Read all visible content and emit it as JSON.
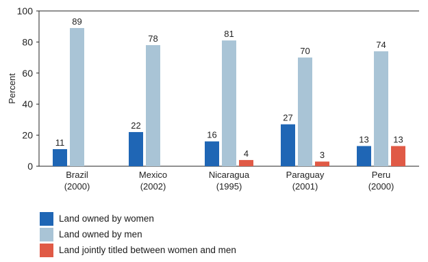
{
  "chart_data": {
    "type": "bar",
    "ylabel": "Percent",
    "ylim": [
      0,
      100
    ],
    "yticks": [
      0,
      20,
      40,
      60,
      80,
      100
    ],
    "categories": [
      [
        "Brazil",
        "(2000)"
      ],
      [
        "Mexico",
        "(2002)"
      ],
      [
        "Nicaragua",
        "(1995)"
      ],
      [
        "Paraguay",
        "(2001)"
      ],
      [
        "Peru",
        "(2000)"
      ]
    ],
    "series": [
      {
        "name": "Land owned by women",
        "color": "#1f66b5",
        "values": [
          11,
          22,
          16,
          27,
          13
        ]
      },
      {
        "name": "Land owned by men",
        "color": "#a9c4d6",
        "values": [
          89,
          78,
          81,
          70,
          74
        ]
      },
      {
        "name": "Land jointly titled between women and men",
        "color": "#e05a46",
        "values": [
          null,
          null,
          4,
          3,
          13
        ]
      }
    ],
    "data_labels": true,
    "legend_position": "bottom-left"
  }
}
